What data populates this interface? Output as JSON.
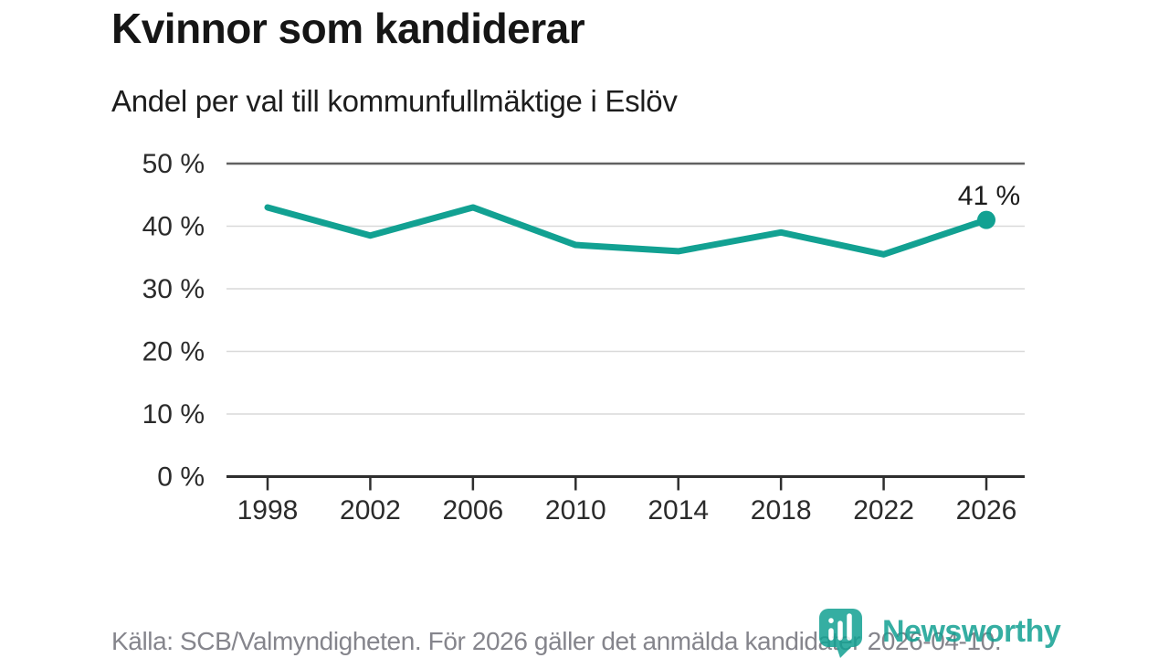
{
  "header": {
    "title": "Kvinnor som kandiderar",
    "subtitle": "Andel per val till kommunfullmäktige i Eslöv"
  },
  "chart_data": {
    "type": "line",
    "title": "Kvinnor som kandiderar",
    "subtitle": "Andel per val till kommunfullmäktige i Eslöv",
    "x": [
      1998,
      2002,
      2006,
      2010,
      2014,
      2018,
      2022,
      2026
    ],
    "x_tick_labels": [
      "1998",
      "2002",
      "2006",
      "2010",
      "2014",
      "2018",
      "2022",
      "2026"
    ],
    "values": [
      43,
      38.5,
      43,
      37,
      36,
      39,
      35.5,
      41
    ],
    "ylim": [
      0,
      50
    ],
    "y_tick_values": [
      0,
      10,
      20,
      30,
      40,
      50
    ],
    "y_tick_labels": [
      "0 %",
      "10 %",
      "20 %",
      "30 %",
      "40 %",
      "50 %"
    ],
    "end_point_label": "41 %",
    "grid": true,
    "legend": "none",
    "line_color": "#12a192",
    "grid_color": "#d9d9d9",
    "top_line_color": "#616161",
    "axis_color": "#2e2e2e",
    "tick_text_color": "#2b2b2b",
    "end_label_color": "#1b1b1b"
  },
  "footer": {
    "source_text": "Källa: SCB/Valmyndigheten. För 2026 gäller det anmälda kandidater 2026-04-10.",
    "logo_text": "Newsworthy",
    "logo_color": "#12a192"
  }
}
